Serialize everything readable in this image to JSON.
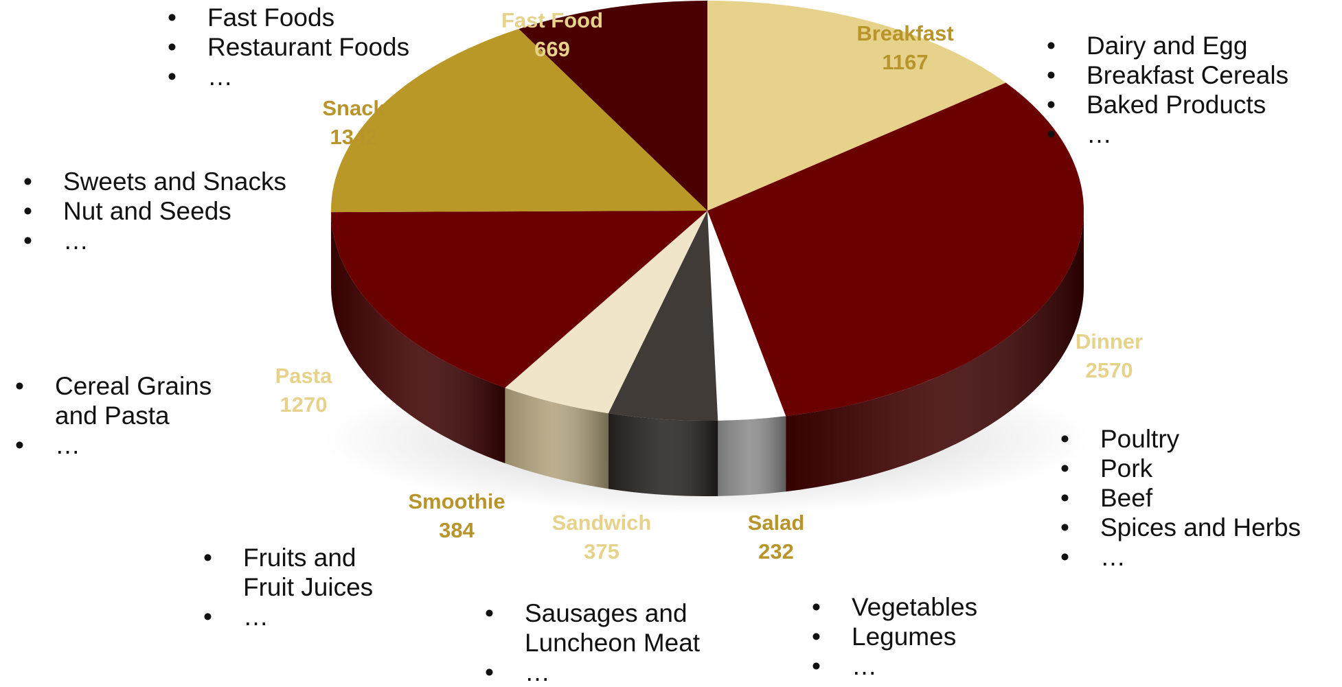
{
  "chart_data": {
    "type": "pie",
    "title": "",
    "legend": "none",
    "slices": [
      {
        "label": "Breakfast",
        "value": 1167,
        "color": "#e6d28a",
        "side": "#b7a05a",
        "label_color": "#b8952a",
        "items": [
          "Dairy and Egg",
          "Breakfast Cereals",
          "Baked Products",
          "…"
        ]
      },
      {
        "label": "Dinner",
        "value": 2570,
        "color": "#6b0000",
        "side": "#3d0000",
        "label_color": "#e6d28a",
        "items": [
          "Poultry",
          "Pork",
          "Beef",
          "Spices and Herbs",
          "…"
        ]
      },
      {
        "label": "Salad",
        "value": 232,
        "color": "#ffffff",
        "side": "#8c8c8c",
        "label_color": "#b8952a",
        "items": [
          "Vegetables",
          "Legumes",
          "…"
        ]
      },
      {
        "label": "Sandwich",
        "value": 375,
        "color": "#403b36",
        "side": "#262320",
        "label_color": "#e6d28a",
        "items": [
          "Sausages and",
          "Luncheon Meat",
          "…"
        ]
      },
      {
        "label": "Smoothie",
        "value": 384,
        "color": "#f0e5c8",
        "side": "#b2a47f",
        "label_color": "#b8952a",
        "items": [
          "Fruits and",
          "Fruit Juices",
          "…"
        ]
      },
      {
        "label": "Pasta",
        "value": 1270,
        "color": "#6b0000",
        "side": "#3d0000",
        "label_color": "#e6d28a",
        "items": [
          "Cereal Grains",
          "and Pasta",
          "…"
        ]
      },
      {
        "label": "Snack",
        "value": 1342,
        "color": "#b99827",
        "side": "#7d6617",
        "label_color": "#b8952a",
        "items": [
          "Sweets and Snacks",
          "Nut and Seeds",
          "…"
        ]
      },
      {
        "label": "Fast Food",
        "value": 669,
        "color": "#4a0000",
        "side": "#2a0000",
        "label_color": "#e6d28a",
        "items": [
          "Fast Foods",
          "Restaurant Foods",
          "…"
        ]
      }
    ]
  }
}
